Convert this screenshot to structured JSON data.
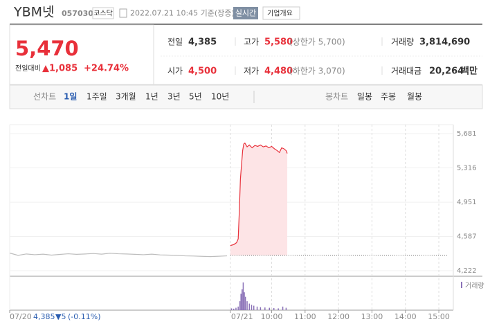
{
  "header": {
    "name": "YBM넷",
    "code": "057030",
    "market": "코스닥",
    "datetime": "2022.07.21 10:45 기준(장중)",
    "realtime": "실시간",
    "company": "기업개요"
  },
  "quote": {
    "price": "5,470",
    "change_label": "전일대비",
    "change": "▲1,085",
    "change_pct": "+24.74%"
  },
  "stats": [
    {
      "label": "전일",
      "value": "4,385"
    },
    {
      "label": "고가",
      "value": "5,580",
      "note": "(상한가 5,700)"
    },
    {
      "label": "거래량",
      "value": "3,814,690"
    },
    {
      "label": "시가",
      "value": "4,500"
    },
    {
      "label": "저가",
      "value": "4,480",
      "note": "(하한가 3,070)"
    },
    {
      "label": "거래대금",
      "value": "20,264",
      "unit": "백만"
    }
  ],
  "tabs": {
    "line_label": "선차트",
    "periods": [
      "1일",
      "1주일",
      "3개월",
      "1년",
      "3년",
      "5년",
      "10년"
    ],
    "candle_label": "봉차트",
    "candles": [
      "일봉",
      "주봉",
      "월봉"
    ]
  },
  "footer": {
    "price": "4,385",
    "change": "▼5",
    "pct": "(-0.11%)"
  },
  "chart_data": {
    "type": "line",
    "series": [
      {
        "color": "#bdbdbd",
        "x": [
          -410,
          -395,
          -380,
          -365,
          -350,
          -335,
          -320,
          -305,
          -290,
          -275,
          -260,
          -245,
          -230,
          -215,
          -200,
          -185,
          -170,
          -155,
          -140,
          -125,
          -110,
          -95,
          -80,
          -65,
          -50,
          -35,
          -20
        ],
        "values": [
          4410,
          4385,
          4400,
          4392,
          4398,
          4388,
          4395,
          4402,
          4396,
          4400,
          4405,
          4398,
          4408,
          4402,
          4400,
          4396,
          4392,
          4398,
          4390,
          4388,
          4385,
          4380,
          4378,
          4375,
          4372,
          4376,
          4380
        ]
      },
      {
        "color": "#e8303a",
        "fill": "#fde4e6",
        "x": [
          -14,
          -8,
          -3,
          0,
          2,
          4,
          6,
          8,
          10,
          12,
          16,
          20,
          25,
          30,
          35,
          40,
          45,
          50,
          55,
          60,
          65,
          70,
          74,
          78,
          82,
          86,
          88
        ],
        "values": [
          4490,
          4500,
          4520,
          4560,
          4850,
          5200,
          5350,
          5500,
          5570,
          5580,
          5540,
          5560,
          5530,
          5555,
          5545,
          5560,
          5540,
          5550,
          5530,
          5545,
          5520,
          5500,
          5480,
          5530,
          5520,
          5500,
          5470
        ]
      }
    ],
    "prev_close": 4385,
    "xlim": [
      -410,
      386
    ],
    "ylim": [
      4222,
      5681
    ],
    "yticks": [
      {
        "value": 5681,
        "label": "5,681"
      },
      {
        "value": 5316,
        "label": "5,316"
      },
      {
        "value": 4951,
        "label": "4,951"
      },
      {
        "value": 4587,
        "label": "4,587"
      },
      {
        "value": 4222,
        "label": "4,222"
      }
    ],
    "xticks": [
      {
        "value": -410,
        "label": "07/20"
      },
      {
        "value": -14,
        "label": "07/21"
      },
      {
        "value": 60,
        "label": "10:00"
      },
      {
        "value": 120,
        "label": "11:00"
      },
      {
        "value": 180,
        "label": "12:00"
      },
      {
        "value": 240,
        "label": "13:00"
      },
      {
        "value": 300,
        "label": "14:00"
      },
      {
        "value": 360,
        "label": "15:00"
      }
    ],
    "grid": true,
    "volume": {
      "label": "거래량",
      "color": "#8b72b8",
      "ylim": [
        0,
        100
      ],
      "x": [
        -12,
        -8,
        -4,
        0,
        3,
        5,
        7,
        9,
        11,
        13,
        16,
        20,
        24,
        28,
        34,
        40,
        48,
        56,
        64,
        72,
        80,
        86
      ],
      "values": [
        6,
        5,
        8,
        12,
        30,
        55,
        70,
        93,
        60,
        45,
        30,
        22,
        18,
        15,
        12,
        10,
        9,
        8,
        7,
        6,
        12,
        8
      ]
    }
  }
}
